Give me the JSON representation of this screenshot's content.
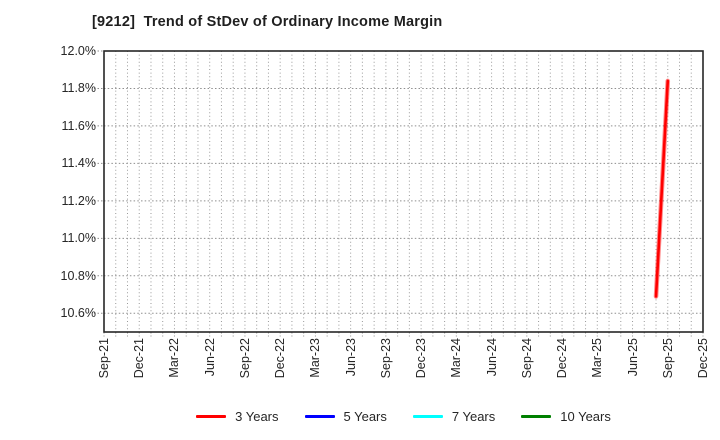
{
  "chart_data": {
    "type": "line",
    "title": "[9212]  Trend of StDev of Ordinary Income Margin",
    "x_tick_labels": [
      "Sep-21",
      "Dec-21",
      "Mar-22",
      "Jun-22",
      "Sep-22",
      "Dec-22",
      "Mar-23",
      "Jun-23",
      "Sep-23",
      "Dec-23",
      "Mar-24",
      "Jun-24",
      "Sep-24",
      "Dec-24",
      "Mar-25",
      "Jun-25",
      "Sep-25",
      "Dec-25"
    ],
    "months_per_tick": 3,
    "ylim": [
      10.5,
      12.0
    ],
    "y_ticks": [
      {
        "label": "10.6%",
        "value": 10.6
      },
      {
        "label": "10.8%",
        "value": 10.8
      },
      {
        "label": "11.0%",
        "value": 11.0
      },
      {
        "label": "11.2%",
        "value": 11.2
      },
      {
        "label": "11.4%",
        "value": 11.4
      },
      {
        "label": "11.6%",
        "value": 11.6
      },
      {
        "label": "11.8%",
        "value": 11.8
      },
      {
        "label": "12.0%",
        "value": 12.0
      }
    ],
    "grid": {
      "vertical": "monthly dotted",
      "horizontal": "dotted every 0.2%"
    },
    "legend_position": "bottom",
    "series": [
      {
        "name": "3 Years",
        "color": "#ff0000",
        "points": [
          {
            "x_label": "Aug-25",
            "month_index": 47,
            "value": 10.69
          },
          {
            "x_label": "Sep-25",
            "month_index": 48,
            "value": 11.84
          }
        ]
      },
      {
        "name": "5 Years",
        "color": "#0000ff",
        "points": []
      },
      {
        "name": "7 Years",
        "color": "#00ffff",
        "points": []
      },
      {
        "name": "10 Years",
        "color": "#008000",
        "points": []
      }
    ]
  },
  "colors": {
    "background": "#ffffff",
    "axis_border": "#262626",
    "grid": "#9a9a9a",
    "text": "#262626"
  }
}
